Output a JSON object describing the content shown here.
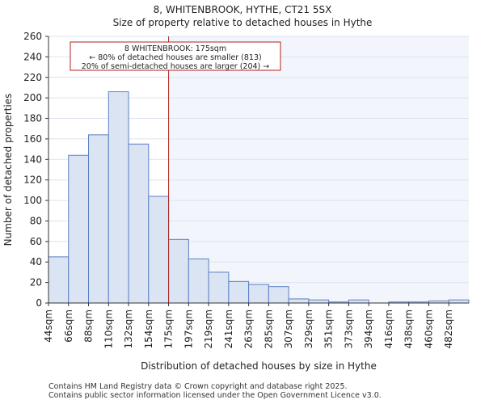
{
  "page": {
    "title_line1": "8, WHITENBROOK, HYTHE, CT21 5SX",
    "title_line2": "Size of property relative to detached houses in Hythe",
    "footer_line1": "Contains HM Land Registry data © Crown copyright and database right 2025.",
    "footer_line2": "Contains public sector information licensed under the Open Government Licence v3.0."
  },
  "chart_data": {
    "type": "bar",
    "title": "Size of property relative to detached houses in Hythe",
    "xlabel": "Distribution of detached houses by size in Hythe",
    "ylabel": "Number of detached properties",
    "ylim": [
      0,
      260
    ],
    "yticks": [
      0,
      20,
      40,
      60,
      80,
      100,
      120,
      140,
      160,
      180,
      200,
      220,
      240,
      260
    ],
    "bin_edges": [
      44,
      66,
      88,
      110,
      132,
      154,
      175,
      197,
      219,
      241,
      263,
      285,
      307,
      329,
      351,
      373,
      394,
      416,
      438,
      460,
      482,
      504
    ],
    "categories": [
      "44sqm",
      "66sqm",
      "88sqm",
      "110sqm",
      "132sqm",
      "154sqm",
      "175sqm",
      "197sqm",
      "219sqm",
      "241sqm",
      "263sqm",
      "285sqm",
      "307sqm",
      "329sqm",
      "351sqm",
      "373sqm",
      "394sqm",
      "416sqm",
      "438sqm",
      "460sqm",
      "482sqm"
    ],
    "values": [
      45,
      144,
      164,
      206,
      155,
      104,
      62,
      43,
      30,
      21,
      18,
      16,
      4,
      3,
      1,
      3,
      0,
      1,
      1,
      2,
      3
    ],
    "marker_value": 175,
    "grid": true,
    "colors": {
      "bar_fill": "#dbe4f3",
      "bar_edge": "#5a7fc4",
      "marker": "#b22222",
      "grid": "#dde3ee",
      "highlight_bg": "#f3f5fc"
    },
    "annotation": {
      "lines": [
        "8 WHITENBROOK: 175sqm",
        "← 80% of detached houses are smaller (813)",
        "20% of semi-detached houses are larger (204) →"
      ]
    }
  }
}
